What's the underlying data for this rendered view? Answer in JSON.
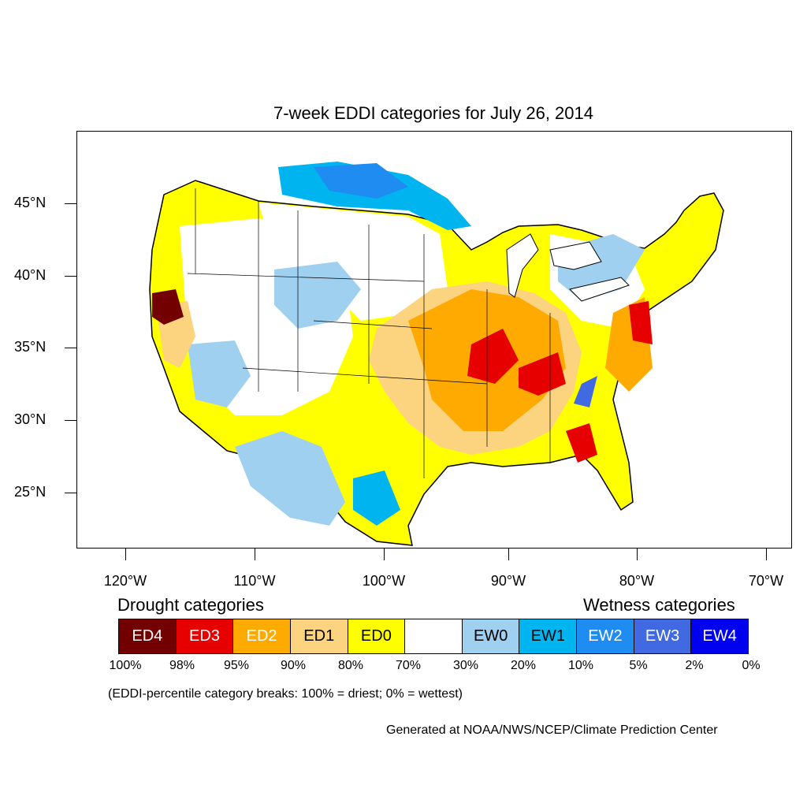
{
  "title": "7-week EDDI categories for July 26, 2014",
  "lat_labels": [
    "45°N",
    "40°N",
    "35°N",
    "30°N",
    "25°N"
  ],
  "lon_labels": [
    "120°W",
    "110°W",
    "100°W",
    "90°W",
    "80°W",
    "70°W"
  ],
  "legend": {
    "drought_heading": "Drought categories",
    "wetness_heading": "Wetness categories",
    "categories": [
      {
        "label": "ED4",
        "color": "#730000",
        "text_color": "#ffffff"
      },
      {
        "label": "ED3",
        "color": "#e60000",
        "text_color": "#ffffff"
      },
      {
        "label": "ED2",
        "color": "#ffaa00",
        "text_color": "#ffffff"
      },
      {
        "label": "ED1",
        "color": "#fcd37f",
        "text_color": "#000000"
      },
      {
        "label": "ED0",
        "color": "#ffff00",
        "text_color": "#000000"
      },
      {
        "label": "",
        "color": "#ffffff",
        "text_color": "#000000"
      },
      {
        "label": "EW0",
        "color": "#9fd0f0",
        "text_color": "#000000"
      },
      {
        "label": "EW1",
        "color": "#00b4f0",
        "text_color": "#000000"
      },
      {
        "label": "EW2",
        "color": "#1e8cf0",
        "text_color": "#ffffff"
      },
      {
        "label": "EW3",
        "color": "#4169e1",
        "text_color": "#ffffff"
      },
      {
        "label": "EW4",
        "color": "#0000f0",
        "text_color": "#ffffff"
      }
    ],
    "breaks": [
      "100%",
      "98%",
      "95%",
      "90%",
      "80%",
      "70%",
      "30%",
      "20%",
      "10%",
      "5%",
      "2%",
      "0%"
    ]
  },
  "note": "(EDDI-percentile category breaks: 100% = driest; 0% = wettest)",
  "credit": "Generated at NOAA/NWS/NCEP/Climate Prediction Center"
}
